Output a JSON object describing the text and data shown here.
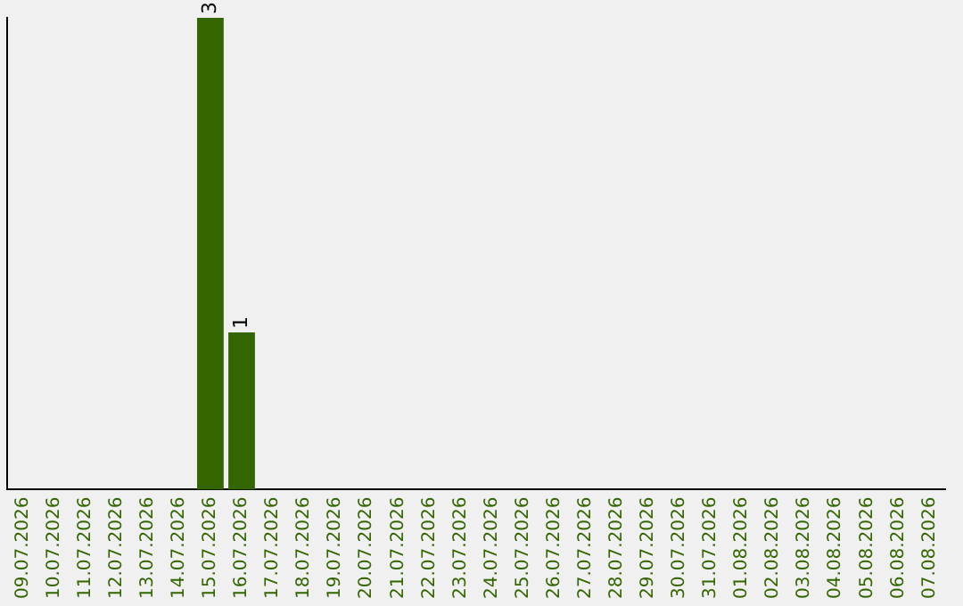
{
  "chart_data": {
    "type": "bar",
    "categories": [
      "09.07.2026",
      "10.07.2026",
      "11.07.2026",
      "12.07.2026",
      "13.07.2026",
      "14.07.2026",
      "15.07.2026",
      "16.07.2026",
      "17.07.2026",
      "18.07.2026",
      "19.07.2026",
      "20.07.2026",
      "21.07.2026",
      "22.07.2026",
      "23.07.2026",
      "24.07.2026",
      "25.07.2026",
      "26.07.2026",
      "27.07.2026",
      "28.07.2026",
      "29.07.2026",
      "30.07.2026",
      "31.07.2026",
      "01.08.2026",
      "02.08.2026",
      "03.08.2026",
      "04.08.2026",
      "05.08.2026",
      "06.08.2026",
      "07.08.2026"
    ],
    "values": [
      0,
      0,
      0,
      0,
      0,
      0,
      3,
      1,
      0,
      0,
      0,
      0,
      0,
      0,
      0,
      0,
      0,
      0,
      0,
      0,
      0,
      0,
      0,
      0,
      0,
      0,
      0,
      0,
      0,
      0
    ],
    "value_labels": [
      null,
      null,
      null,
      null,
      null,
      null,
      "3",
      "1",
      null,
      null,
      null,
      null,
      null,
      null,
      null,
      null,
      null,
      null,
      null,
      null,
      null,
      null,
      null,
      null,
      null,
      null,
      null,
      null,
      null,
      null
    ],
    "color": "#336600",
    "ylim": [
      0,
      3
    ],
    "tick_labels": "x",
    "grid": false,
    "legend": false
  }
}
